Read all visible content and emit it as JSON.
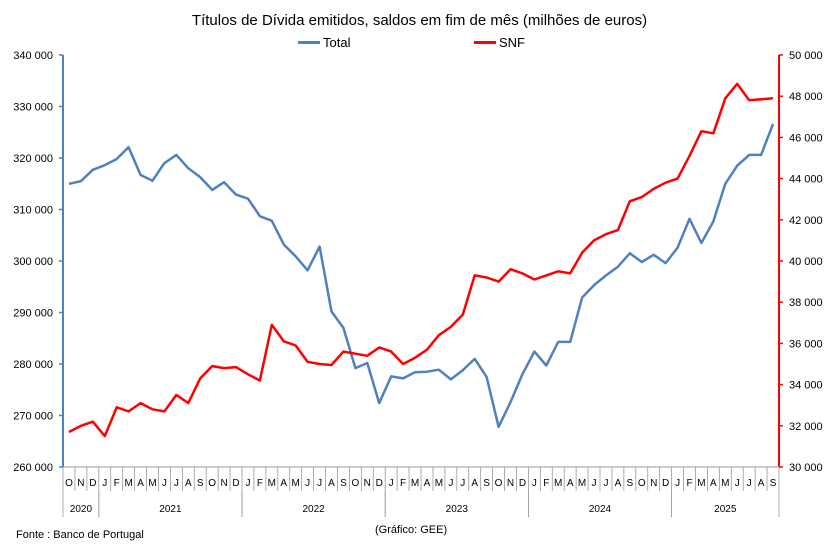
{
  "chart_data": {
    "type": "line",
    "title": "Títulos de Dívida emitidos, saldos em fim de mês  (milhões de euros)",
    "legend_position": "top",
    "months": [
      "O",
      "N",
      "D",
      "J",
      "F",
      "M",
      "A",
      "M",
      "J",
      "J",
      "A",
      "S",
      "O",
      "N",
      "D",
      "J",
      "F",
      "M",
      "A",
      "M",
      "J",
      "J",
      "A",
      "S",
      "O",
      "N",
      "D",
      "J",
      "F",
      "M",
      "A",
      "M",
      "J",
      "J",
      "A",
      "S",
      "O",
      "N",
      "D",
      "J",
      "F",
      "M",
      "A",
      "M",
      "J",
      "J",
      "A",
      "S",
      "O",
      "N",
      "D",
      "J",
      "F",
      "M",
      "A",
      "M",
      "J",
      "J",
      "A",
      "S"
    ],
    "years": [
      {
        "label": "2020",
        "start": 0,
        "count": 3
      },
      {
        "label": "2021",
        "start": 3,
        "count": 12
      },
      {
        "label": "2022",
        "start": 15,
        "count": 12
      },
      {
        "label": "2023",
        "start": 27,
        "count": 12
      },
      {
        "label": "2024",
        "start": 39,
        "count": 12
      },
      {
        "label": "2025",
        "start": 51,
        "count": 9
      }
    ],
    "left_axis": {
      "min": 260000,
      "max": 340000,
      "step": 10000,
      "ticks": [
        "260 000",
        "270 000",
        "280 000",
        "290 000",
        "300 000",
        "310 000",
        "320 000",
        "330 000",
        "340 000"
      ],
      "color": "#4f81bd"
    },
    "right_axis": {
      "min": 30000,
      "max": 50000,
      "step": 2000,
      "ticks": [
        "30 000",
        "32 000",
        "34 000",
        "36 000",
        "38 000",
        "40 000",
        "42 000",
        "44 000",
        "46 000",
        "48 000",
        "50 000"
      ],
      "color": "#ff0000"
    },
    "series": [
      {
        "name": "Total",
        "axis": "left",
        "color": "#4f81bd",
        "values": [
          315000,
          315500,
          317700,
          318600,
          319800,
          322100,
          316700,
          315600,
          319000,
          320600,
          318000,
          316300,
          313800,
          315300,
          312900,
          312100,
          308700,
          307800,
          303200,
          300900,
          298200,
          302800,
          290200,
          287000,
          279200,
          280200,
          272400,
          277600,
          277200,
          278400,
          278500,
          278900,
          277000,
          278800,
          281000,
          277500,
          267800,
          272600,
          278000,
          282400,
          279700,
          284300,
          284300,
          292900,
          295300,
          297200,
          298900,
          301500,
          299800,
          301200,
          299600,
          302600,
          308200,
          303500,
          307700,
          315000,
          318500,
          320600,
          320600,
          326600
        ]
      },
      {
        "name": "SNF",
        "axis": "right",
        "color": "#ff0000",
        "values": [
          31700,
          32000,
          32200,
          31500,
          32900,
          32700,
          33100,
          32800,
          32700,
          33500,
          33100,
          34300,
          34900,
          34800,
          34850,
          34500,
          34200,
          36900,
          36100,
          35900,
          35100,
          35000,
          34950,
          35600,
          35500,
          35400,
          35800,
          35600,
          35000,
          35300,
          35700,
          36400,
          36800,
          37400,
          39300,
          39200,
          39000,
          39600,
          39400,
          39100,
          39300,
          39500,
          39400,
          40400,
          41000,
          41300,
          41500,
          42900,
          43100,
          43500,
          43800,
          44000,
          45100,
          46300,
          46200,
          47900,
          48600,
          47800,
          47850,
          47900
        ]
      }
    ]
  },
  "footer": {
    "source": "Fonte : Banco de Portugal",
    "credit": "(Gráfico: GEE)"
  }
}
